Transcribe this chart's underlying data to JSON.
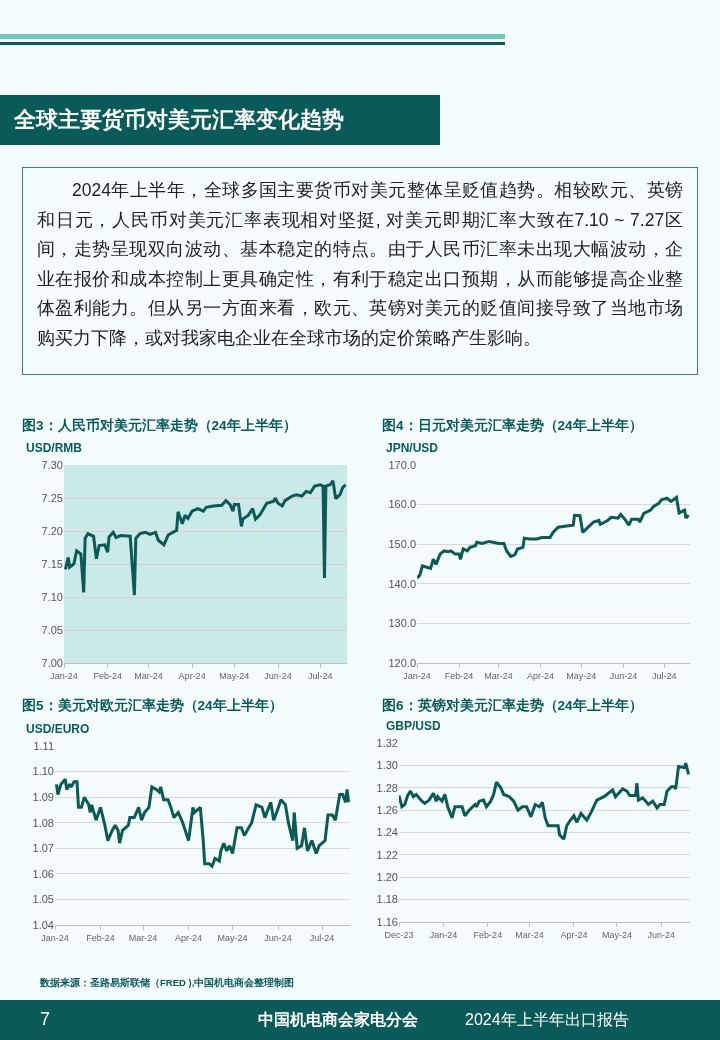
{
  "chart_data": [
    {
      "type": "other",
      "title": "全球主要货币对美元汇率变化趋势",
      "annotations": [
        "2024年上半年，全球多国主要货币对美元整体呈贬值趋势。相较欧元、英镑和日元，人民币对美元汇率表现相对坚挺, 对美元即期汇率大致在7.10 ~ 7.27区间，走势呈现双向波动、基本稳定的特点。由于人民币汇率未出现大幅波动，企业在报价和成本控制上更具确定性，有利于稳定出口预期，从而能够提高企业整体盈利能力。但从另一方面来看，欧元、英镑对美元的贬值间接导致了当地市场购买力下降，或对我家电企业在全球市场的定价策略产生影响。"
      ]
    },
    {
      "type": "line",
      "title": "图3：人民币对美元汇率走势（24年上半年）",
      "ylabel": "USD/RMB",
      "grid": "y",
      "xlim": [
        "2024-01-01",
        "2024-07-20"
      ],
      "xticks": [
        {
          "value": "2024-01-01",
          "label": "Jan-24"
        },
        {
          "value": "2024-02-01",
          "label": "Feb-24"
        },
        {
          "value": "2024-03-01",
          "label": "Mar-24"
        },
        {
          "value": "2024-04-01",
          "label": "Apr-24"
        },
        {
          "value": "2024-05-01",
          "label": "May-24"
        },
        {
          "value": "2024-06-01",
          "label": "Jun-24"
        },
        {
          "value": "2024-07-01",
          "label": "Jul-24"
        }
      ],
      "ylim": [
        7.0,
        7.3
      ],
      "yticks": [
        {
          "value": 7.0,
          "label": "7.00"
        },
        7.05,
        {
          "value": 7.1,
          "label": "7.10"
        },
        7.15,
        {
          "value": 7.2,
          "label": "7.20"
        },
        7.25,
        {
          "value": 7.3,
          "label": "7.30"
        }
      ],
      "x": [
        "2024-01-02",
        "2024-01-04",
        "2024-01-05",
        "2024-01-08",
        "2024-01-10",
        "2024-01-13",
        "2024-01-15",
        "2024-01-16",
        "2024-01-18",
        "2024-01-22",
        "2024-01-24",
        "2024-01-26",
        "2024-01-30",
        "2024-02-01",
        "2024-02-02",
        "2024-02-05",
        "2024-02-07",
        "2024-02-10",
        "2024-02-17",
        "2024-02-20",
        "2024-02-21",
        "2024-02-24",
        "2024-02-28",
        "2024-03-02",
        "2024-03-06",
        "2024-03-08",
        "2024-03-12",
        "2024-03-15",
        "2024-03-21",
        "2024-03-22",
        "2024-03-25",
        "2024-03-27",
        "2024-03-29",
        "2024-04-01",
        "2024-04-05",
        "2024-04-09",
        "2024-04-11",
        "2024-04-16",
        "2024-04-22",
        "2024-04-25",
        "2024-04-28",
        "2024-04-30",
        "2024-05-01",
        "2024-05-04",
        "2024-05-06",
        "2024-05-07",
        "2024-05-11",
        "2024-05-14",
        "2024-05-16",
        "2024-05-19",
        "2024-05-24",
        "2024-05-29",
        "2024-05-30",
        "2024-06-01",
        "2024-06-04",
        "2024-06-06",
        "2024-06-11",
        "2024-06-14",
        "2024-06-18",
        "2024-06-21",
        "2024-06-24",
        "2024-06-27",
        "2024-07-01",
        "2024-07-03",
        "2024-07-04",
        "2024-07-05",
        "2024-07-08",
        "2024-07-10",
        "2024-07-12",
        "2024-07-15",
        "2024-07-17",
        "2024-07-19"
      ],
      "series": [
        {
          "color": "#0c5956",
          "values": [
            7.142,
            7.16,
            7.145,
            7.15,
            7.17,
            7.165,
            7.107,
            7.189,
            7.196,
            7.192,
            7.158,
            7.178,
            7.179,
            7.168,
            7.191,
            7.198,
            7.19,
            7.193,
            7.192,
            7.103,
            7.189,
            7.196,
            7.198,
            7.195,
            7.198,
            7.186,
            7.179,
            7.194,
            7.201,
            7.229,
            7.211,
            7.224,
            7.219,
            7.23,
            7.234,
            7.23,
            7.236,
            7.238,
            7.239,
            7.246,
            7.24,
            7.23,
            7.24,
            7.24,
            7.207,
            7.218,
            7.224,
            7.234,
            7.218,
            7.224,
            7.242,
            7.245,
            7.25,
            7.242,
            7.238,
            7.246,
            7.253,
            7.255,
            7.253,
            7.26,
            7.258,
            7.268,
            7.27,
            7.268,
            7.129,
            7.268,
            7.27,
            7.276,
            7.249,
            7.255,
            7.266,
            7.27
          ]
        }
      ]
    },
    {
      "type": "line",
      "title": "图4：日元对美元汇率走势（24年上半年）",
      "ylabel": "JPN/USD",
      "grid": "y",
      "xlim": [
        "2024-01-01",
        "2024-07-20"
      ],
      "xticks": [
        {
          "value": "2024-01-01",
          "label": "Jan-24"
        },
        {
          "value": "2024-02-01",
          "label": "Feb-24"
        },
        {
          "value": "2024-03-01",
          "label": "Mar-24"
        },
        {
          "value": "2024-04-01",
          "label": "Apr-24"
        },
        {
          "value": "2024-05-01",
          "label": "May-24"
        },
        {
          "value": "2024-06-01",
          "label": "Jun-24"
        },
        {
          "value": "2024-07-01",
          "label": "Jul-24"
        }
      ],
      "ylim": [
        120,
        170
      ],
      "yticks": [
        {
          "value": 120,
          "label": "120.0"
        },
        {
          "value": 130,
          "label": "130.0"
        },
        {
          "value": 140,
          "label": "140.0"
        },
        {
          "value": 150,
          "label": "150.0"
        },
        {
          "value": 160,
          "label": "160.0"
        },
        {
          "value": 170,
          "label": "170.0"
        }
      ],
      "x": [
        "2024-01-01",
        "2024-01-03",
        "2024-01-05",
        "2024-01-07",
        "2024-01-11",
        "2024-01-13",
        "2024-01-15",
        "2024-01-18",
        "2024-01-21",
        "2024-01-24",
        "2024-01-26",
        "2024-01-29",
        "2024-02-01",
        "2024-02-02",
        "2024-02-04",
        "2024-02-07",
        "2024-02-09",
        "2024-02-13",
        "2024-02-14",
        "2024-02-18",
        "2024-02-23",
        "2024-02-26",
        "2024-03-01",
        "2024-03-05",
        "2024-03-07",
        "2024-03-10",
        "2024-03-13",
        "2024-03-15",
        "2024-03-19",
        "2024-03-20",
        "2024-03-24",
        "2024-03-29",
        "2024-04-02",
        "2024-04-08",
        "2024-04-10",
        "2024-04-14",
        "2024-04-20",
        "2024-04-25",
        "2024-04-26",
        "2024-04-30",
        "2024-05-02",
        "2024-05-06",
        "2024-05-10",
        "2024-05-14",
        "2024-05-15",
        "2024-05-20",
        "2024-05-23",
        "2024-05-28",
        "2024-05-30",
        "2024-06-02",
        "2024-06-05",
        "2024-06-07",
        "2024-06-12",
        "2024-06-13",
        "2024-06-16",
        "2024-06-21",
        "2024-06-23",
        "2024-06-27",
        "2024-06-29",
        "2024-07-03",
        "2024-07-06",
        "2024-07-10",
        "2024-07-12",
        "2024-07-16",
        "2024-07-17",
        "2024-07-19"
      ],
      "series": [
        {
          "color": "#0c5956",
          "values": [
            141.5,
            142.1,
            144.5,
            144.3,
            143.9,
            146.2,
            144.9,
            147.5,
            148.3,
            148.1,
            148.3,
            147.5,
            147.5,
            146.2,
            148.8,
            148.3,
            149.2,
            149.6,
            150.5,
            150.2,
            150.7,
            150.5,
            150.2,
            150.2,
            148.3,
            146.9,
            147.3,
            148.8,
            149.2,
            151.5,
            151.3,
            151.3,
            151.7,
            151.7,
            152.9,
            154.3,
            154.6,
            154.8,
            157.3,
            157.2,
            153.0,
            154.3,
            155.6,
            156.0,
            155.0,
            155.9,
            156.8,
            156.6,
            157.5,
            156.3,
            154.8,
            156.3,
            156.3,
            155.6,
            157.8,
            158.6,
            159.5,
            160.3,
            161.2,
            161.6,
            160.8,
            161.8,
            157.9,
            158.6,
            156.6,
            157.3
          ]
        }
      ]
    },
    {
      "type": "line",
      "title": "图5：美元对欧元汇率走势（24年上半年）",
      "ylabel": "USD/EURO",
      "grid": "y",
      "xlim": [
        "2024-01-01",
        "2024-07-20"
      ],
      "xticks": [
        {
          "value": "2024-01-01",
          "label": "Jan-24"
        },
        {
          "value": "2024-02-01",
          "label": "Feb-24"
        },
        {
          "value": "2024-03-01",
          "label": "Mar-24"
        },
        {
          "value": "2024-04-01",
          "label": "Apr-24"
        },
        {
          "value": "2024-05-01",
          "label": "May-24"
        },
        {
          "value": "2024-06-01",
          "label": "Jun-24"
        },
        {
          "value": "2024-07-01",
          "label": "Jul-24"
        }
      ],
      "ylim": [
        1.04,
        1.11
      ],
      "yticks": [
        1.04,
        1.05,
        1.06,
        1.07,
        1.08,
        1.09,
        {
          "value": 1.1,
          "label": "1.10"
        },
        1.11
      ],
      "x": [
        "2024-01-02",
        "2024-01-03",
        "2024-01-05",
        "2024-01-08",
        "2024-01-09",
        "2024-01-11",
        "2024-01-12",
        "2024-01-14",
        "2024-01-16",
        "2024-01-17",
        "2024-01-19",
        "2024-01-21",
        "2024-01-24",
        "2024-01-25",
        "2024-01-26",
        "2024-01-29",
        "2024-02-01",
        "2024-02-04",
        "2024-02-06",
        "2024-02-09",
        "2024-02-11",
        "2024-02-13",
        "2024-02-14",
        "2024-02-16",
        "2024-02-20",
        "2024-02-21",
        "2024-02-24",
        "2024-02-27",
        "2024-02-29",
        "2024-03-02",
        "2024-03-05",
        "2024-03-07",
        "2024-03-10",
        "2024-03-12",
        "2024-03-13",
        "2024-03-15",
        "2024-03-18",
        "2024-03-20",
        "2024-03-22",
        "2024-03-25",
        "2024-03-28",
        "2024-04-01",
        "2024-04-04",
        "2024-04-05",
        "2024-04-09",
        "2024-04-11",
        "2024-04-12",
        "2024-04-15",
        "2024-04-17",
        "2024-04-19",
        "2024-04-22",
        "2024-04-23",
        "2024-04-25",
        "2024-04-27",
        "2024-04-29",
        "2024-05-01",
        "2024-05-04",
        "2024-05-07",
        "2024-05-09",
        "2024-05-12",
        "2024-05-14",
        "2024-05-17",
        "2024-05-21",
        "2024-05-23",
        "2024-05-27",
        "2024-05-29",
        "2024-05-31",
        "2024-06-03",
        "2024-06-06",
        "2024-06-08",
        "2024-06-11",
        "2024-06-12",
        "2024-06-14",
        "2024-06-17",
        "2024-06-19",
        "2024-06-21",
        "2024-06-24",
        "2024-06-27",
        "2024-06-29",
        "2024-07-03",
        "2024-07-05",
        "2024-07-08",
        "2024-07-10",
        "2024-07-13",
        "2024-07-15",
        "2024-07-17",
        "2024-07-18",
        "2024-07-19"
      ],
      "series": [
        {
          "color": "#0c5956",
          "values": [
            1.095,
            1.091,
            1.095,
            1.097,
            1.093,
            1.095,
            1.094,
            1.096,
            1.096,
            1.086,
            1.086,
            1.09,
            1.087,
            1.084,
            1.087,
            1.081,
            1.086,
            1.079,
            1.073,
            1.077,
            1.079,
            1.077,
            1.072,
            1.077,
            1.079,
            1.082,
            1.082,
            1.086,
            1.081,
            1.084,
            1.086,
            1.094,
            1.093,
            1.092,
            1.094,
            1.089,
            1.089,
            1.086,
            1.082,
            1.084,
            1.08,
            1.073,
            1.086,
            1.084,
            1.086,
            1.073,
            1.064,
            1.064,
            1.063,
            1.066,
            1.065,
            1.069,
            1.072,
            1.069,
            1.071,
            1.068,
            1.078,
            1.078,
            1.075,
            1.078,
            1.08,
            1.087,
            1.086,
            1.082,
            1.088,
            1.081,
            1.084,
            1.089,
            1.087,
            1.08,
            1.073,
            1.084,
            1.07,
            1.071,
            1.078,
            1.069,
            1.073,
            1.068,
            1.071,
            1.073,
            1.083,
            1.083,
            1.081,
            1.091,
            1.091,
            1.088,
            1.093,
            1.088
          ]
        }
      ]
    },
    {
      "type": "line",
      "title": "图6：英镑对美元汇率走势（24年上半年）",
      "ylabel": "GBP/USD",
      "grid": "y",
      "xlim": [
        "2023-12-01",
        "2024-06-21"
      ],
      "xticks": [
        {
          "value": "2023-12-01",
          "label": "Dec-23"
        },
        {
          "value": "2024-01-01",
          "label": "Jan-24"
        },
        {
          "value": "2024-02-01",
          "label": "Feb-24"
        },
        {
          "value": "2024-03-01",
          "label": "Mar-24"
        },
        {
          "value": "2024-04-01",
          "label": "Apr-24"
        },
        {
          "value": "2024-05-01",
          "label": "May-24"
        },
        {
          "value": "2024-06-01",
          "label": "Jun-24"
        }
      ],
      "ylim": [
        1.16,
        1.32
      ],
      "yticks": [
        1.16,
        1.18,
        {
          "value": 1.2,
          "label": "1.20"
        },
        1.22,
        1.24,
        1.26,
        1.28,
        {
          "value": 1.3,
          "label": "1.30"
        },
        1.32
      ],
      "x": [
        "2023-12-01",
        "2023-12-03",
        "2023-12-05",
        "2023-12-07",
        "2023-12-09",
        "2023-12-11",
        "2023-12-13",
        "2023-12-17",
        "2023-12-19",
        "2023-12-22",
        "2023-12-25",
        "2023-12-27",
        "2023-12-28",
        "2023-12-31",
        "2024-01-02",
        "2024-01-04",
        "2024-01-07",
        "2024-01-09",
        "2024-01-14",
        "2024-01-16",
        "2024-01-19",
        "2024-01-23",
        "2024-01-24",
        "2024-01-26",
        "2024-01-29",
        "2024-01-31",
        "2024-02-03",
        "2024-02-05",
        "2024-02-07",
        "2024-02-10",
        "2024-02-12",
        "2024-02-16",
        "2024-02-19",
        "2024-02-22",
        "2024-02-25",
        "2024-02-28",
        "2024-03-02",
        "2024-03-05",
        "2024-03-08",
        "2024-03-10",
        "2024-03-12",
        "2024-03-14",
        "2024-03-18",
        "2024-03-21",
        "2024-03-22",
        "2024-03-25",
        "2024-03-27",
        "2024-03-29",
        "2024-04-01",
        "2024-04-03",
        "2024-04-06",
        "2024-04-10",
        "2024-04-13",
        "2024-04-17",
        "2024-04-22",
        "2024-04-24",
        "2024-04-28",
        "2024-04-30",
        "2024-05-05",
        "2024-05-08",
        "2024-05-10",
        "2024-05-14",
        "2024-05-15",
        "2024-05-16",
        "2024-05-19",
        "2024-05-23",
        "2024-05-26",
        "2024-05-29",
        "2024-05-31",
        "2024-06-03",
        "2024-06-05",
        "2024-06-08",
        "2024-06-10",
        "2024-06-11",
        "2024-06-13",
        "2024-06-17",
        "2024-06-18",
        "2024-06-20"
      ],
      "series": [
        {
          "color": "#0c5956",
          "values": [
            1.273,
            1.263,
            1.265,
            1.273,
            1.277,
            1.272,
            1.274,
            1.268,
            1.266,
            1.269,
            1.275,
            1.268,
            1.272,
            1.268,
            1.274,
            1.263,
            1.253,
            1.263,
            1.263,
            1.255,
            1.26,
            1.265,
            1.263,
            1.268,
            1.269,
            1.263,
            1.268,
            1.274,
            1.285,
            1.28,
            1.274,
            1.272,
            1.268,
            1.26,
            1.263,
            1.263,
            1.254,
            1.265,
            1.263,
            1.267,
            1.253,
            1.246,
            1.246,
            1.246,
            1.238,
            1.234,
            1.246,
            1.25,
            1.255,
            1.249,
            1.257,
            1.251,
            1.258,
            1.269,
            1.272,
            1.274,
            1.278,
            1.272,
            1.279,
            1.277,
            1.273,
            1.273,
            1.284,
            1.269,
            1.271,
            1.265,
            1.268,
            1.262,
            1.265,
            1.265,
            1.277,
            1.281,
            1.281,
            1.279,
            1.299,
            1.298,
            1.302,
            1.292
          ]
        }
      ]
    },
    {
      "type": "other",
      "annotations": [
        "数据来源：圣路易斯联储（FRED ),中国机电商会整理制图",
        "7",
        "中国机电商会家电分会",
        "2024年上半年出口报告"
      ]
    }
  ]
}
